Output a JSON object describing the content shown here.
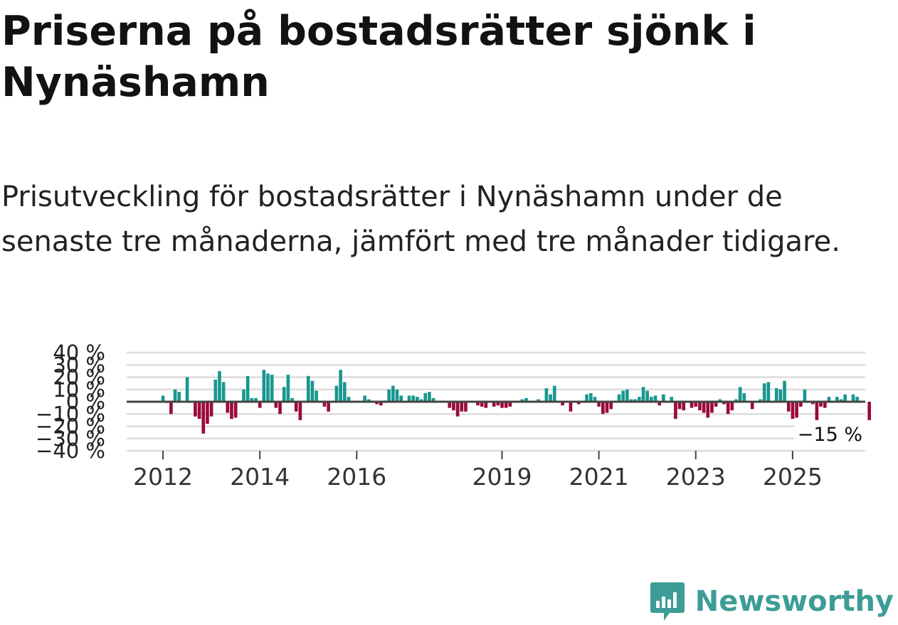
{
  "title": "Priserna på bostadsrätter sjönk i Nynäshamn",
  "subtitle": "Prisutveckling för bostadsrätter i Nynäshamn under de senaste tre månaderna, jämfört med tre månader tidigare.",
  "brand": {
    "name": "Newsworthy",
    "color": "#3d9d96",
    "icon": "newsworthy-logo-icon"
  },
  "colors": {
    "positive": "#18978f",
    "negative": "#9a0a3c",
    "grid": "#dcdcdc",
    "zero": "#444444",
    "text": "#222222"
  },
  "chart_data": {
    "type": "bar",
    "title": "Priserna på bostadsrätter sjönk i Nynäshamn",
    "xlabel": "",
    "ylabel": "",
    "ylim": [
      -40,
      40
    ],
    "yticks": [
      40,
      30,
      20,
      10,
      0,
      -10,
      -20,
      -30,
      -40
    ],
    "ytick_labels": [
      "40 %",
      "30 %",
      "20 %",
      "10 %",
      "0 %",
      "−10 %",
      "−20 %",
      "−30 %",
      "−40 %"
    ],
    "xticks": [
      2012,
      2014,
      2016,
      2019,
      2021,
      2023,
      2025
    ],
    "xtick_labels": [
      "2012",
      "2014",
      "2016",
      "2019",
      "2021",
      "2023",
      "2025"
    ],
    "xlim": [
      2011.25,
      2026.5
    ],
    "series": [
      {
        "name": "Prisutveckling",
        "start": 2012.0,
        "step_months": 1,
        "values": [
          5,
          -1,
          -10,
          10,
          8,
          0,
          20,
          0,
          -12,
          -14,
          -26,
          -18,
          -12,
          18,
          25,
          16,
          -9,
          -14,
          -13,
          0,
          10,
          21,
          3,
          3,
          -5,
          26,
          23,
          22,
          -5,
          -10,
          12,
          22,
          3,
          -8,
          -15,
          0,
          21,
          17,
          9,
          0,
          -4,
          -8,
          0,
          13,
          26,
          16,
          4,
          0,
          0,
          0,
          5,
          2,
          0,
          -2,
          -3,
          1,
          10,
          13,
          10,
          5,
          0,
          5,
          5,
          4,
          2,
          7,
          8,
          3,
          0,
          0,
          0,
          -5,
          -7,
          -12,
          -8,
          -8,
          0,
          0,
          -3,
          -4,
          -5,
          0,
          -4,
          -3,
          -5,
          -5,
          -4,
          0,
          0,
          2,
          3,
          0,
          0,
          2,
          0,
          11,
          6,
          13,
          0,
          -3,
          0,
          -8,
          0,
          -2,
          0,
          6,
          7,
          4,
          -4,
          -10,
          -9,
          -6,
          0,
          6,
          9,
          10,
          2,
          2,
          4,
          12,
          9,
          4,
          5,
          -3,
          6,
          0,
          4,
          -14,
          -6,
          -7,
          0,
          -5,
          -4,
          -7,
          -9,
          -13,
          -9,
          -4,
          2,
          -2,
          -10,
          -7,
          2,
          12,
          7,
          0,
          -6,
          0,
          2,
          15,
          16,
          0,
          11,
          10,
          17,
          -8,
          -14,
          -13,
          -4,
          10,
          0,
          -2,
          -15,
          -4,
          -5,
          4,
          0,
          4,
          2,
          6,
          0,
          6,
          4,
          0,
          0,
          -15
        ]
      }
    ],
    "annotation": {
      "label": "−15 %",
      "value": -15
    }
  }
}
